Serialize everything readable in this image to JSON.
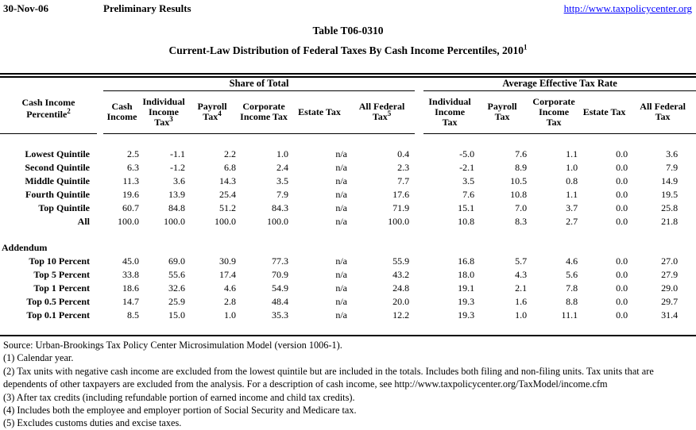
{
  "page": {
    "date": "30-Nov-06",
    "status": "Preliminary Results",
    "url": "http://www.taxpolicycenter.org"
  },
  "title": {
    "line1": "Table T06-0310",
    "line2": "Current-Law Distribution of Federal Taxes By Cash Income Percentiles, 2010",
    "line2_sup": "1"
  },
  "table": {
    "row_header": {
      "line1": "Cash Income",
      "line2": "Percentile",
      "sup": "2"
    },
    "groups": [
      {
        "label": "Share of Total"
      },
      {
        "label": "Average Effective Tax Rate"
      }
    ],
    "share_columns": [
      {
        "lines": [
          "Cash",
          "Income"
        ],
        "sup": ""
      },
      {
        "lines": [
          "Individual",
          "Income",
          "Tax"
        ],
        "sup": "3"
      },
      {
        "lines": [
          "Payroll",
          "Tax"
        ],
        "sup": "4"
      },
      {
        "lines": [
          "Corporate",
          "Income Tax"
        ],
        "sup": ""
      },
      {
        "lines": [
          "Estate Tax"
        ],
        "sup": ""
      },
      {
        "lines": [
          "All Federal",
          "Tax"
        ],
        "sup": "5"
      }
    ],
    "avg_columns": [
      {
        "lines": [
          "Individual",
          "Income",
          "Tax"
        ],
        "sup": ""
      },
      {
        "lines": [
          "Payroll",
          "Tax"
        ],
        "sup": ""
      },
      {
        "lines": [
          "Corporate",
          "Income",
          "Tax"
        ],
        "sup": ""
      },
      {
        "lines": [
          "Estate Tax"
        ],
        "sup": ""
      },
      {
        "lines": [
          "All Federal",
          "Tax"
        ],
        "sup": ""
      }
    ],
    "sections": [
      {
        "heading": "",
        "rows": [
          {
            "label": "Lowest Quintile",
            "values": [
              "2.5",
              "-1.1",
              "2.2",
              "1.0",
              "n/a",
              "0.4",
              "-5.0",
              "7.6",
              "1.1",
              "0.0",
              "3.6"
            ]
          },
          {
            "label": "Second Quintile",
            "values": [
              "6.3",
              "-1.2",
              "6.8",
              "2.4",
              "n/a",
              "2.3",
              "-2.1",
              "8.9",
              "1.0",
              "0.0",
              "7.9"
            ]
          },
          {
            "label": "Middle Quintile",
            "values": [
              "11.3",
              "3.6",
              "14.3",
              "3.5",
              "n/a",
              "7.7",
              "3.5",
              "10.5",
              "0.8",
              "0.0",
              "14.9"
            ]
          },
          {
            "label": "Fourth Quintile",
            "values": [
              "19.6",
              "13.9",
              "25.4",
              "7.9",
              "n/a",
              "17.6",
              "7.6",
              "10.8",
              "1.1",
              "0.0",
              "19.5"
            ]
          },
          {
            "label": "Top Quintile",
            "values": [
              "60.7",
              "84.8",
              "51.2",
              "84.3",
              "n/a",
              "71.9",
              "15.1",
              "7.0",
              "3.7",
              "0.0",
              "25.8"
            ]
          },
          {
            "label": "All",
            "values": [
              "100.0",
              "100.0",
              "100.0",
              "100.0",
              "n/a",
              "100.0",
              "10.8",
              "8.3",
              "2.7",
              "0.0",
              "21.8"
            ]
          }
        ]
      },
      {
        "heading": "Addendum",
        "rows": [
          {
            "label": "Top 10 Percent",
            "values": [
              "45.0",
              "69.0",
              "30.9",
              "77.3",
              "n/a",
              "55.9",
              "16.8",
              "5.7",
              "4.6",
              "0.0",
              "27.0"
            ]
          },
          {
            "label": "Top 5 Percent",
            "values": [
              "33.8",
              "55.6",
              "17.4",
              "70.9",
              "n/a",
              "43.2",
              "18.0",
              "4.3",
              "5.6",
              "0.0",
              "27.9"
            ]
          },
          {
            "label": "Top 1 Percent",
            "values": [
              "18.6",
              "32.6",
              "4.6",
              "54.9",
              "n/a",
              "24.8",
              "19.1",
              "2.1",
              "7.8",
              "0.0",
              "29.0"
            ]
          },
          {
            "label": "Top 0.5 Percent",
            "values": [
              "14.7",
              "25.9",
              "2.8",
              "48.4",
              "n/a",
              "20.0",
              "19.3",
              "1.6",
              "8.8",
              "0.0",
              "29.7"
            ]
          },
          {
            "label": "Top 0.1 Percent",
            "values": [
              "8.5",
              "15.0",
              "1.0",
              "35.3",
              "n/a",
              "12.2",
              "19.3",
              "1.0",
              "11.1",
              "0.0",
              "31.4"
            ]
          }
        ]
      }
    ]
  },
  "footnotes": [
    "Source: Urban-Brookings Tax Policy Center Microsimulation Model (version 1006-1).",
    "(1) Calendar year.",
    "(2) Tax units with negative cash income are excluded from the lowest quintile but are included in the totals. Includes both filing and non-filing units. Tax units that are dependents of other taxpayers are excluded from the analysis. For a description of cash income, see http://www.taxpolicycenter.org/TaxModel/income.cfm",
    "(3) After tax credits (including refundable portion of earned income and child tax credits).",
    "(4) Includes both the employee and employer portion of Social Security and Medicare tax.",
    "(5) Excludes customs duties and excise taxes."
  ],
  "colors": {
    "link": "#0000ff",
    "text": "#000000",
    "background": "#ffffff"
  }
}
